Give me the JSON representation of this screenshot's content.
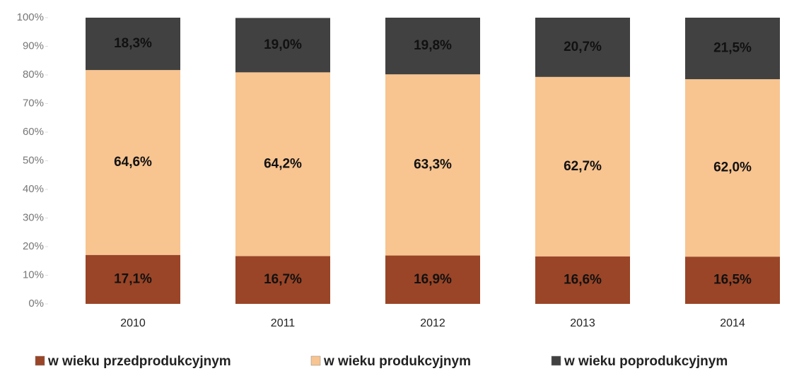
{
  "chart_data": {
    "type": "stacked_bar",
    "categories": [
      "2010",
      "2011",
      "2012",
      "2013",
      "2014"
    ],
    "series": [
      {
        "name": "w wieku przedprodukcyjnym",
        "color": "#9a4527",
        "values": [
          17.1,
          16.7,
          16.9,
          16.6,
          16.5
        ],
        "value_labels": [
          "17,1%",
          "16,7%",
          "16,9%",
          "16,6%",
          "16,5%"
        ]
      },
      {
        "name": "w wieku produkcyjnym",
        "color": "#f8c490",
        "values": [
          64.6,
          64.2,
          63.3,
          62.7,
          62.0
        ],
        "value_labels": [
          "64,6%",
          "64,2%",
          "63,3%",
          "62,7%",
          "62,0%"
        ]
      },
      {
        "name": "w wieku poprodukcyjnym",
        "color": "#414141",
        "values": [
          18.3,
          19.0,
          19.8,
          20.7,
          21.5
        ],
        "value_labels": [
          "18,3%",
          "19,0%",
          "19,8%",
          "20,7%",
          "21,5%"
        ]
      }
    ],
    "ylim": [
      0,
      100
    ],
    "yticks": [
      {
        "value": 0,
        "label": "0%"
      },
      {
        "value": 10,
        "label": "10%"
      },
      {
        "value": 20,
        "label": "20%"
      },
      {
        "value": 30,
        "label": "30%"
      },
      {
        "value": 40,
        "label": "40%"
      },
      {
        "value": 50,
        "label": "50%"
      },
      {
        "value": 60,
        "label": "60%"
      },
      {
        "value": 70,
        "label": "70%"
      },
      {
        "value": 80,
        "label": "80%"
      },
      {
        "value": 90,
        "label": "90%"
      },
      {
        "value": 100,
        "label": "100%"
      }
    ],
    "legend": "bottom"
  }
}
